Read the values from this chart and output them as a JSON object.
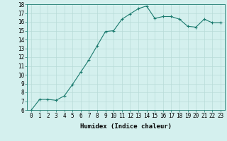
{
  "x": [
    0,
    1,
    2,
    3,
    4,
    5,
    6,
    7,
    8,
    9,
    10,
    11,
    12,
    13,
    14,
    15,
    16,
    17,
    18,
    19,
    20,
    21,
    22,
    23
  ],
  "y": [
    6.0,
    7.2,
    7.2,
    7.1,
    7.6,
    8.9,
    10.3,
    11.7,
    13.3,
    14.9,
    15.0,
    16.3,
    16.9,
    17.5,
    17.8,
    16.4,
    16.6,
    16.6,
    16.3,
    15.5,
    15.4,
    16.3,
    15.9,
    15.9
  ],
  "line_color": "#1a7a6e",
  "bg_color": "#d4f0ee",
  "grid_color": "#b8dbd8",
  "xlabel": "Humidex (Indice chaleur)",
  "xlim": [
    -0.5,
    23.5
  ],
  "ylim": [
    6,
    18
  ],
  "yticks": [
    6,
    7,
    8,
    9,
    10,
    11,
    12,
    13,
    14,
    15,
    16,
    17,
    18
  ],
  "xtick_labels": [
    "0",
    "1",
    "2",
    "3",
    "4",
    "5",
    "6",
    "7",
    "8",
    "9",
    "10",
    "11",
    "12",
    "13",
    "14",
    "15",
    "16",
    "17",
    "18",
    "19",
    "20",
    "21",
    "22",
    "23"
  ],
  "axis_fontsize": 6.5,
  "tick_fontsize": 5.5,
  "marker": "+",
  "marker_size": 3,
  "line_width": 0.8
}
